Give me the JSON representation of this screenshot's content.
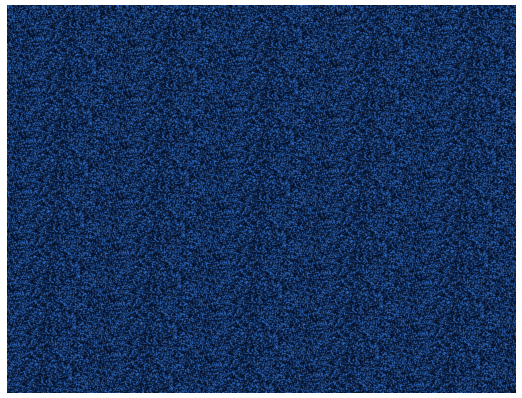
{
  "image": {
    "description_type": "noise-texture",
    "colors": {
      "background": "#07162c",
      "dark": "#020812",
      "mid": "#0b2a52",
      "bright": "#1a5aa8",
      "speck": "#3f86d8"
    }
  }
}
